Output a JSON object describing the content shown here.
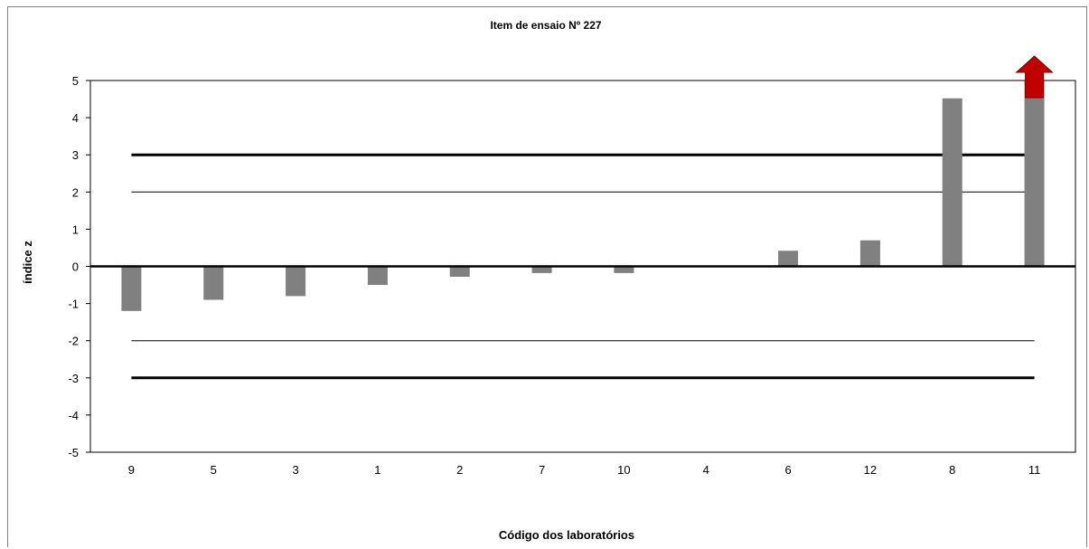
{
  "chart_data": {
    "type": "bar",
    "title": "Item de ensaio Nº 227",
    "xlabel": "Código dos laboratórios",
    "ylabel": "índice z",
    "categories": [
      "9",
      "5",
      "3",
      "1",
      "2",
      "7",
      "10",
      "4",
      "6",
      "12",
      "8",
      "11"
    ],
    "values": [
      -1.2,
      -0.9,
      -0.8,
      -0.5,
      -0.28,
      -0.18,
      -0.18,
      0,
      0.42,
      0.7,
      4.52,
      5.0
    ],
    "value_exceeds_axis": [
      false,
      false,
      false,
      false,
      false,
      false,
      false,
      false,
      false,
      false,
      false,
      true
    ],
    "ylim": [
      -5,
      5
    ],
    "yticks": [
      5,
      4,
      3,
      2,
      1,
      0,
      -1,
      -2,
      -3,
      -4,
      -5
    ],
    "reference_lines": [
      {
        "value": 3,
        "style": "thick"
      },
      {
        "value": 2,
        "style": "thin"
      },
      {
        "value": -2,
        "style": "thin"
      },
      {
        "value": -3,
        "style": "thick"
      }
    ],
    "grid": false,
    "legend": "none",
    "colors": {
      "bar": "#808080",
      "arrow": "#c00000",
      "line": "#000000",
      "frame": "#7f7f7f"
    }
  }
}
